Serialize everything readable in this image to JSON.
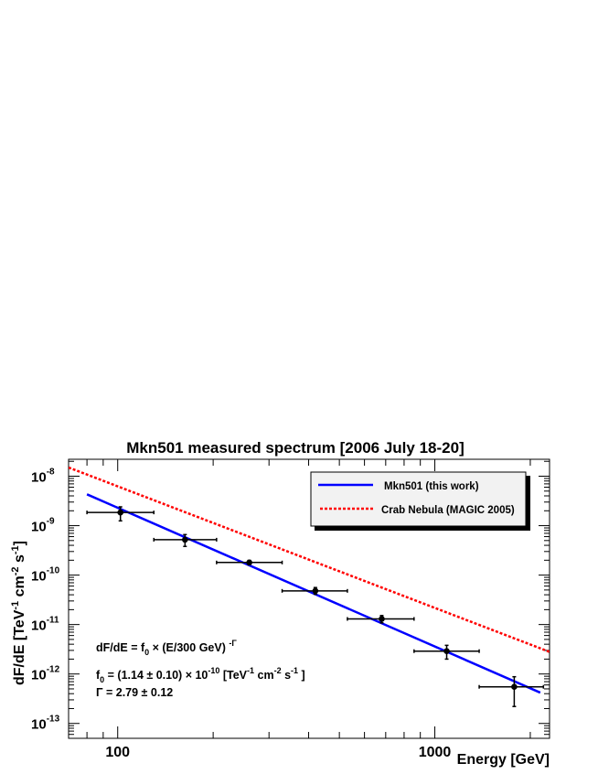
{
  "chart_data": {
    "type": "scatter",
    "title": "Mkn501 measured spectrum [2006 July 18-20]",
    "xlabel": "Energy [GeV]",
    "ylabel": {
      "main": "dF/dE [TeV",
      "sup1": "-1",
      "mid": " cm",
      "sup2": "-2",
      "mid2": " s",
      "sup3": "-1",
      "end": "]"
    },
    "x_scale": "log",
    "y_scale": "log",
    "xlim": [
      70,
      2300
    ],
    "ylim": [
      5e-14,
      2.2e-08
    ],
    "x_tick_labels": [
      {
        "value": 100,
        "label": "100"
      },
      {
        "value": 1000,
        "label": "1000"
      }
    ],
    "y_tick_labels": [
      {
        "value": 1e-13,
        "base": "10",
        "exp": "-13"
      },
      {
        "value": 1e-12,
        "base": "10",
        "exp": "-12"
      },
      {
        "value": 1e-11,
        "base": "10",
        "exp": "-11"
      },
      {
        "value": 1e-10,
        "base": "10",
        "exp": "-10"
      },
      {
        "value": 1e-09,
        "base": "10",
        "exp": "-9"
      },
      {
        "value": 1e-08,
        "base": "10",
        "exp": "-8"
      }
    ],
    "series": [
      {
        "name": "Mkn501 (this work)",
        "kind": "fit_line",
        "color": "#0000ff",
        "x": [
          80,
          2150
        ],
        "y": [
          4.3e-09,
          4.2e-13
        ]
      },
      {
        "name": "Crab Nebula (MAGIC 2005)",
        "kind": "dashed_line",
        "color": "#ff0000",
        "x": [
          70,
          2300
        ],
        "y": [
          1.5e-08,
          2.8e-12
        ]
      },
      {
        "name": "data",
        "kind": "points",
        "color": "#000000",
        "points": [
          {
            "x": 102,
            "y": 1.85e-09,
            "xlo": 80,
            "xhi": 130,
            "ylo": 1.25e-09,
            "yhi": 2.4e-09
          },
          {
            "x": 163,
            "y": 5.2e-10,
            "xlo": 130,
            "xhi": 205,
            "ylo": 3.8e-10,
            "yhi": 6.6e-10
          },
          {
            "x": 260,
            "y": 1.8e-10,
            "xlo": 205,
            "xhi": 330,
            "ylo": 1.62e-10,
            "yhi": 1.98e-10
          },
          {
            "x": 420,
            "y": 4.8e-11,
            "xlo": 330,
            "xhi": 530,
            "ylo": 4.1e-11,
            "yhi": 5.6e-11
          },
          {
            "x": 680,
            "y": 1.3e-11,
            "xlo": 530,
            "xhi": 860,
            "ylo": 1.08e-11,
            "yhi": 1.52e-11
          },
          {
            "x": 1090,
            "y": 2.9e-12,
            "xlo": 860,
            "xhi": 1380,
            "ylo": 2e-12,
            "yhi": 3.8e-12
          },
          {
            "x": 1780,
            "y": 5.5e-13,
            "xlo": 1380,
            "xhi": 2200,
            "ylo": 2.2e-13,
            "yhi": 8.8e-13
          }
        ]
      }
    ],
    "legend": {
      "placement": "top-right",
      "entries": [
        "Mkn501 (this work)",
        "Crab Nebula (MAGIC 2005)"
      ]
    },
    "annotations": {
      "formula_pre": "dF/dE = f",
      "formula_sub": "0",
      "formula_mid": " × (E/300 GeV) ",
      "formula_sup": "-Γ",
      "f0_pre": "f",
      "f0_sub": "0",
      "f0_mid": " = (1.14 ± 0.10) × 10",
      "f0_exp": "-10",
      "f0_units_pre": " [TeV",
      "f0_units_sup1": "-1",
      "f0_units_mid": " cm",
      "f0_units_sup2": "-2",
      "f0_units_mid2": " s",
      "f0_units_sup3": "-1",
      "f0_units_end": " ]",
      "gamma": "Γ = 2.79 ± 0.12"
    },
    "grid": false
  }
}
